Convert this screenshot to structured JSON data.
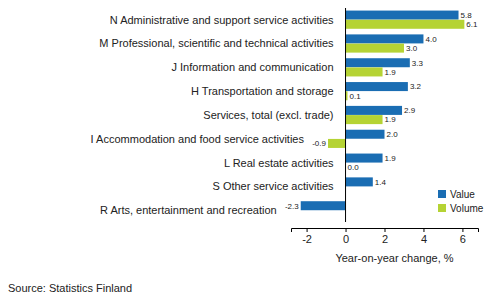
{
  "chart_data": {
    "type": "bar",
    "orientation": "horizontal",
    "categories": [
      "N Administrative and support service activities",
      "M Professional, scientific and technical activities",
      "J Information and communication",
      "H Transportation and storage",
      "Services, total (excl. trade)",
      "I Accommodation and food service activities",
      "L Real estate activities",
      "S Other service activities",
      "R Arts, entertainment and recreation"
    ],
    "series": [
      {
        "name": "Value",
        "color": "#1a6db3",
        "values": [
          5.8,
          4.0,
          3.3,
          3.2,
          2.9,
          2.0,
          1.9,
          1.4,
          -2.3
        ],
        "value_labels": [
          "5.8",
          "4.0",
          "3.3",
          "3.2",
          "2.9",
          "2.0",
          "1.9",
          "1.4",
          "-2.3"
        ]
      },
      {
        "name": "Volume",
        "color": "#b5d334",
        "values": [
          6.1,
          3.0,
          1.9,
          0.1,
          1.9,
          -0.9,
          0.0,
          null,
          null
        ],
        "value_labels": [
          "6.1",
          "3.0",
          "1.9",
          "0.1",
          "1.9",
          "-0.9",
          "0.0",
          null,
          null
        ]
      }
    ],
    "xlabel": "Year-on-year change, %",
    "source": "Source: Statistics Finland",
    "xlim": [
      -2.8,
      6.8
    ],
    "xticks": [
      -2,
      0,
      2,
      4,
      6
    ],
    "data_labels": true,
    "legend": "lower right",
    "grid": false
  }
}
